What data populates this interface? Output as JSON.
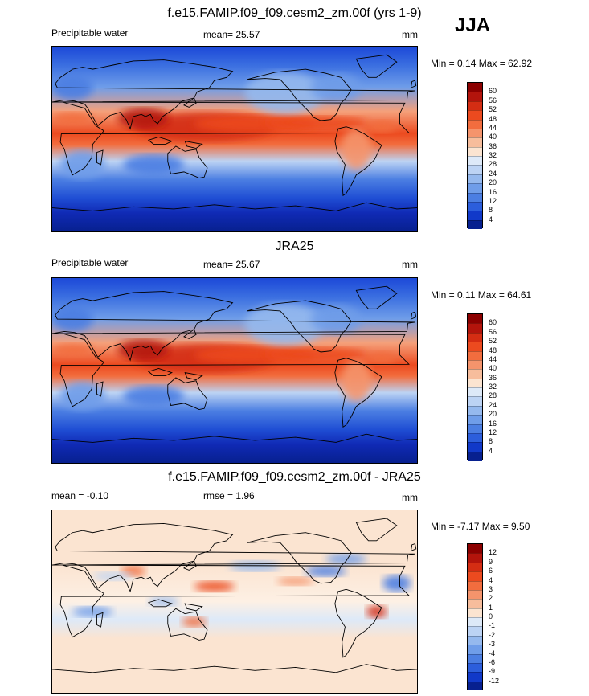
{
  "season": "JJA",
  "panels": [
    {
      "title": "f.e15.FAMIP.f09_f09.cesm2_zm.00f (yrs 1-9)",
      "left_label": "Precipitable water",
      "center_label": "mean=  25.57",
      "units": "mm",
      "minmax": "Min =   0.14 Max =  62.92",
      "kind": "abs",
      "colorbar": {
        "levels": [
          "60",
          "56",
          "52",
          "48",
          "44",
          "40",
          "36",
          "32",
          "28",
          "24",
          "20",
          "16",
          "12",
          "8",
          "4"
        ],
        "colors": [
          "#8b0000",
          "#b3140c",
          "#d42d13",
          "#ec4a1f",
          "#f26d3e",
          "#f5946c",
          "#f7bd9c",
          "#fbe4d1",
          "#dde9f8",
          "#bcd3f4",
          "#95b9ee",
          "#6f9de9",
          "#4b7ee2",
          "#2c5edc",
          "#1139c9",
          "#07208f"
        ]
      }
    },
    {
      "title": "JRA25",
      "left_label": "Precipitable water",
      "center_label": "mean=  25.67",
      "units": "mm",
      "minmax": "Min =   0.11 Max =  64.61",
      "kind": "abs",
      "colorbar": {
        "levels": [
          "60",
          "56",
          "52",
          "48",
          "44",
          "40",
          "36",
          "32",
          "28",
          "24",
          "20",
          "16",
          "12",
          "8",
          "4"
        ],
        "colors": [
          "#8b0000",
          "#b3140c",
          "#d42d13",
          "#ec4a1f",
          "#f26d3e",
          "#f5946c",
          "#f7bd9c",
          "#fbe4d1",
          "#dde9f8",
          "#bcd3f4",
          "#95b9ee",
          "#6f9de9",
          "#4b7ee2",
          "#2c5edc",
          "#1139c9",
          "#07208f"
        ]
      }
    },
    {
      "title": "f.e15.FAMIP.f09_f09.cesm2_zm.00f - JRA25",
      "left_label": "mean =  -0.10",
      "center_label": "rmse =   1.96",
      "units": "mm",
      "minmax": "Min =  -7.17 Max =   9.50",
      "kind": "diff",
      "colorbar": {
        "levels": [
          "12",
          "9",
          "6",
          "4",
          "3",
          "2",
          "1",
          "0",
          "-1",
          "-2",
          "-3",
          "-4",
          "-6",
          "-9",
          "-12"
        ],
        "colors": [
          "#8b0000",
          "#b3140c",
          "#d42d13",
          "#ec4a1f",
          "#f26d3e",
          "#f5946c",
          "#f7bd9c",
          "#fbe4d1",
          "#dde9f8",
          "#bcd3f4",
          "#95b9ee",
          "#6f9de9",
          "#4b7ee2",
          "#2c5edc",
          "#1139c9",
          "#07208f"
        ]
      }
    }
  ]
}
